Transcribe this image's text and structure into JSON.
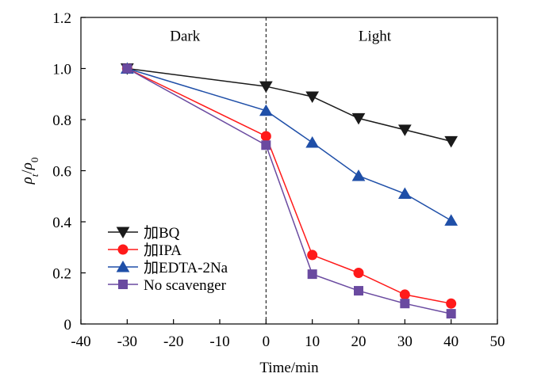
{
  "chart_data": {
    "type": "line",
    "title": "",
    "xlabel": "Time/min",
    "ylabel": {
      "main": "ρ",
      "sub": "t",
      "sep": "/",
      "main2": "ρ",
      "sub2": "0"
    },
    "xlim": [
      -40,
      50
    ],
    "ylim": [
      0,
      1.2
    ],
    "xticks": [
      -40,
      -30,
      -20,
      -10,
      0,
      10,
      20,
      30,
      40,
      50
    ],
    "yticks": [
      0,
      0.2,
      0.4,
      0.6,
      0.8,
      1.0,
      1.2
    ],
    "xtick_labels": [
      "-40",
      "-30",
      "-20",
      "-10",
      "0",
      "10",
      "20",
      "30",
      "40",
      "50"
    ],
    "ytick_labels": [
      "0",
      "0.2",
      "0.4",
      "0.6",
      "0.8",
      "1.0",
      "1.2"
    ],
    "grid": false,
    "legend_position": "bottom-left",
    "annotations": [
      {
        "text": "Dark",
        "x": -17.5,
        "y": 1.13
      },
      {
        "text": "Light",
        "x": 23.5,
        "y": 1.13
      }
    ],
    "divider": {
      "x": 0,
      "style": "dashed"
    },
    "x": [
      -30,
      0,
      10,
      20,
      30,
      40
    ],
    "series": [
      {
        "name": "加BQ",
        "color": "#1a1a1a",
        "marker": "triangle-down",
        "values": [
          1.0,
          0.93,
          0.89,
          0.805,
          0.76,
          0.715
        ]
      },
      {
        "name": "加IPA",
        "color": "#ff1a1a",
        "marker": "circle",
        "values": [
          1.0,
          0.735,
          0.27,
          0.2,
          0.115,
          0.08
        ]
      },
      {
        "name": "加EDTA-2Na",
        "color": "#1f4fa8",
        "marker": "triangle-up",
        "values": [
          1.0,
          0.835,
          0.71,
          0.58,
          0.51,
          0.405
        ]
      },
      {
        "name": "No scavenger",
        "color": "#6a4aa0",
        "marker": "square",
        "values": [
          1.0,
          0.7,
          0.195,
          0.13,
          0.08,
          0.04
        ]
      }
    ]
  }
}
